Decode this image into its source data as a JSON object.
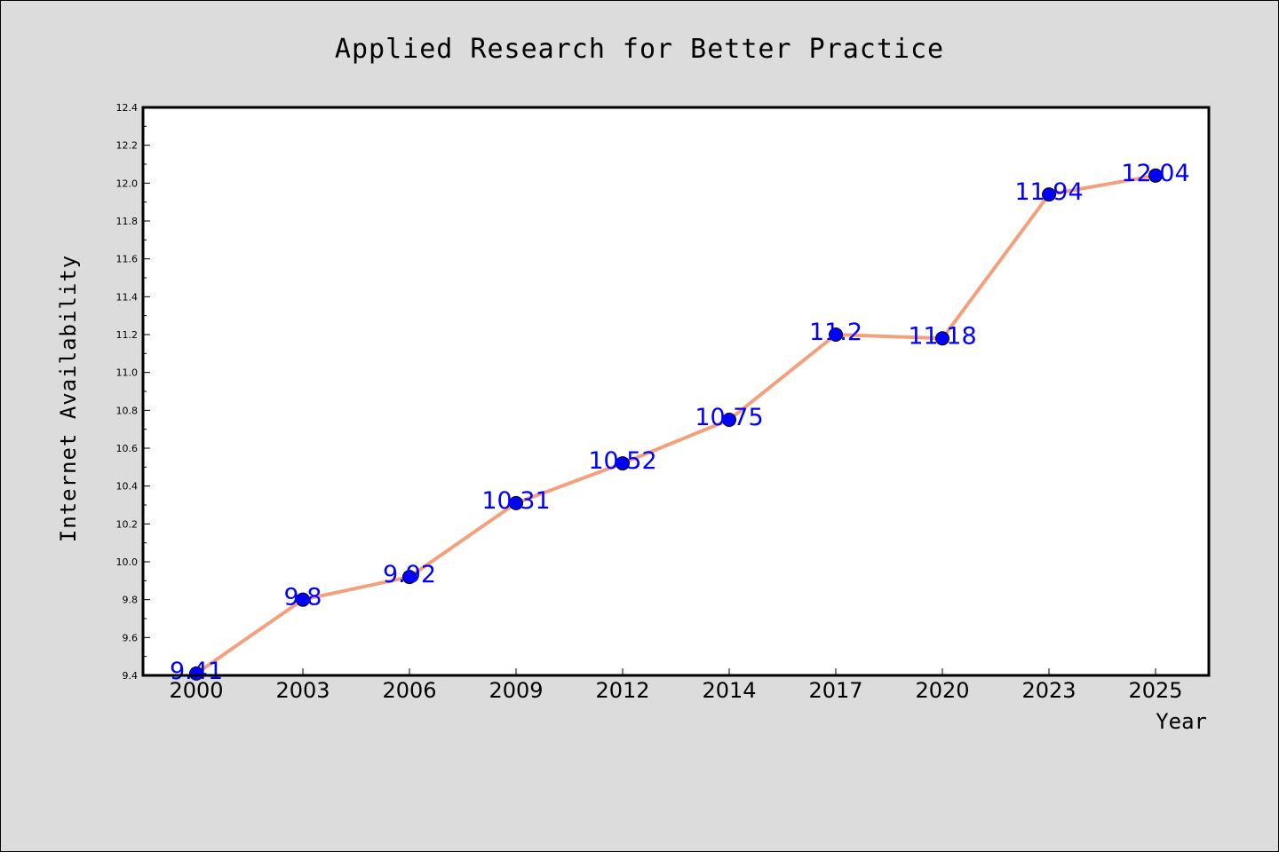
{
  "chart_data": {
    "type": "line",
    "title": "Applied Research for Better Practice",
    "xlabel": "Year",
    "ylabel": "Internet Availability",
    "categories": [
      "2000",
      "2003",
      "2006",
      "2009",
      "2012",
      "2014",
      "2017",
      "2020",
      "2023",
      "2025"
    ],
    "values": [
      9.41,
      9.8,
      9.92,
      10.31,
      10.52,
      10.75,
      11.2,
      11.18,
      11.94,
      12.04
    ],
    "data_labels": [
      "9.41",
      "9.8",
      "9.92",
      "10.31",
      "10.52",
      "10.75",
      "11.2",
      "11.18",
      "11.94",
      "12.04"
    ],
    "ylim": [
      9.4,
      12.4
    ],
    "yticks": [
      "9.4",
      "9.6",
      "9.8",
      "10.0",
      "10.2",
      "10.4",
      "10.6",
      "10.8",
      "11.0",
      "11.2",
      "11.4",
      "11.6",
      "11.8",
      "12.0",
      "12.2",
      "12.4"
    ],
    "grid": false,
    "legend": "none",
    "colors": {
      "line": "#f4a07c",
      "marker_fill": "#0000ff",
      "marker_edge": "#000000",
      "label": "#0000ff",
      "background": "#dcdcdc",
      "plot_background": "#ffffff"
    }
  }
}
